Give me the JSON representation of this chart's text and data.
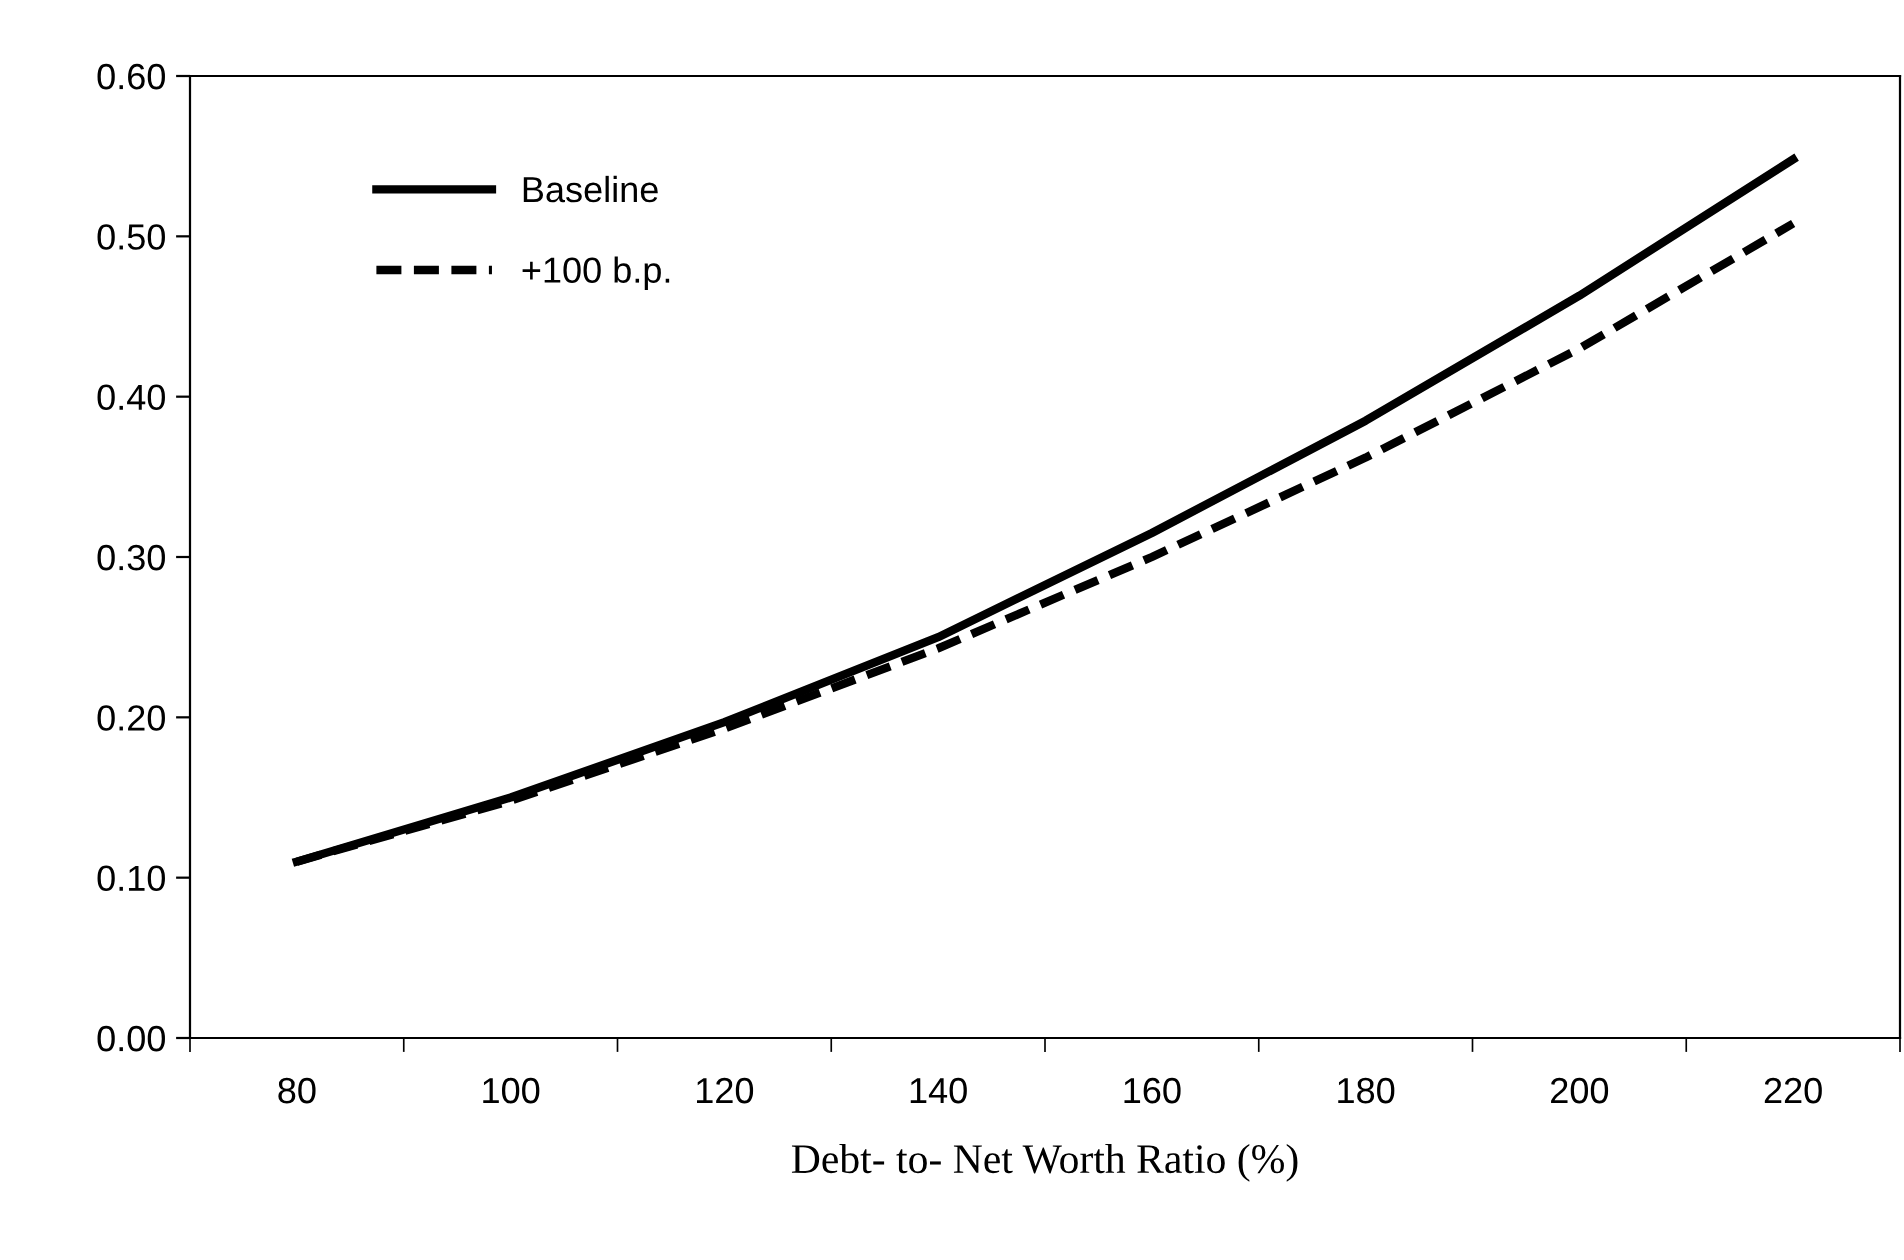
{
  "chart_data": {
    "type": "line",
    "xlabel": "Debt- to- Net Worth Ratio (%)",
    "categories": [
      "80",
      "100",
      "120",
      "140",
      "160",
      "180",
      "200",
      "220"
    ],
    "series": [
      {
        "name": "Baseline",
        "color": "#000000",
        "line_style": "solid",
        "values": [
          0.11,
          0.15,
          0.197,
          0.25,
          0.315,
          0.385,
          0.463,
          0.548
        ]
      },
      {
        "name": "+100 b.p.",
        "color": "#000000",
        "line_style": "dashed",
        "values": [
          0.11,
          0.148,
          0.193,
          0.243,
          0.3,
          0.362,
          0.43,
          0.508
        ]
      }
    ],
    "ylim": [
      0,
      0.6
    ],
    "yticks": [
      {
        "value": 0,
        "label": "0.00"
      },
      {
        "value": 0.1,
        "label": "0.10"
      },
      {
        "value": 0.2,
        "label": "0.20"
      },
      {
        "value": 0.3,
        "label": "0.30"
      },
      {
        "value": 0.4,
        "label": "0.40"
      },
      {
        "value": 0.5,
        "label": "0.50"
      },
      {
        "value": 0.6,
        "label": "0.60"
      }
    ],
    "grid": false,
    "legend": "top left",
    "marker": "none"
  }
}
